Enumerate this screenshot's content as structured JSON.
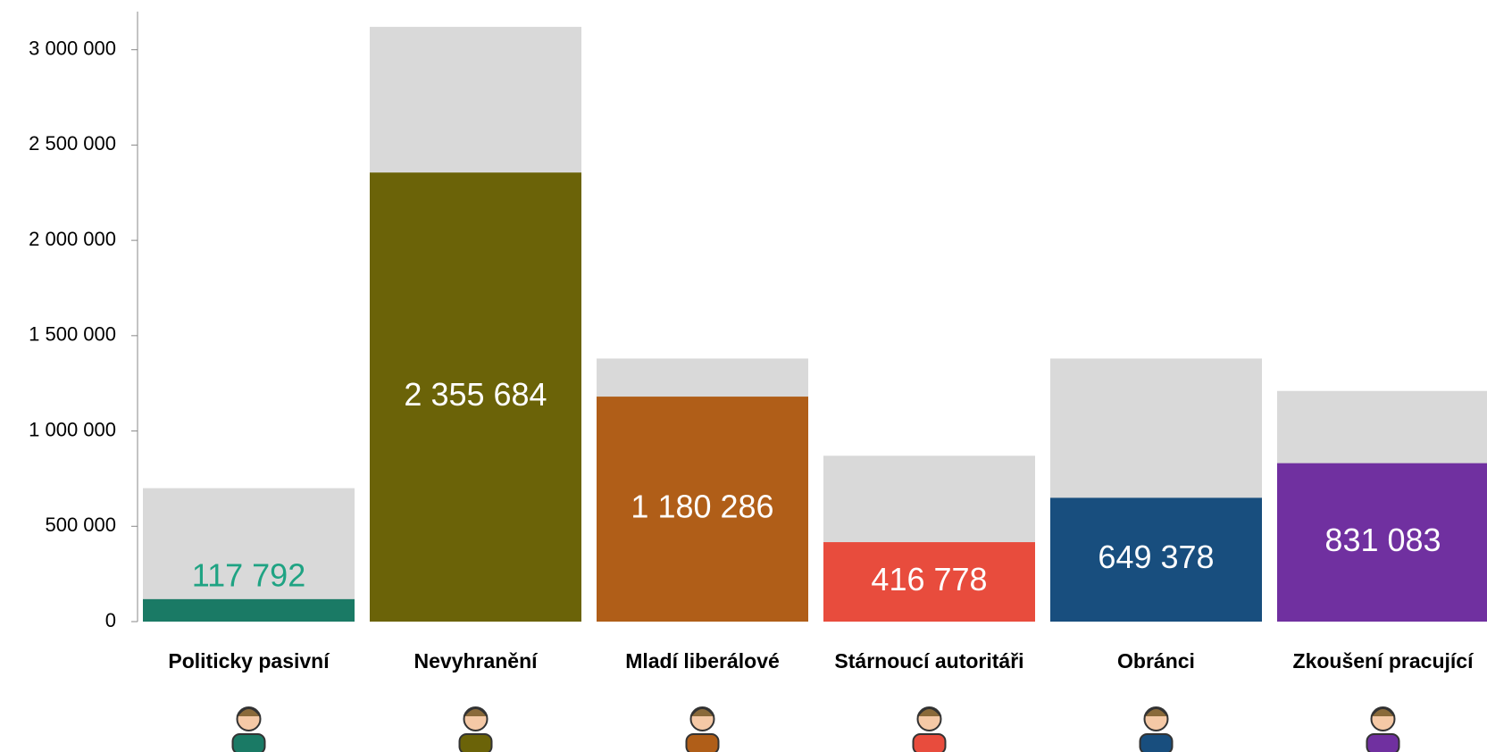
{
  "chart_data": {
    "type": "bar",
    "categories": [
      "Politicky pasivní",
      "Nevyhranění",
      "Mladí liberálové",
      "Stárnoucí autoritáři",
      "Obránci",
      "Zkoušení pracující"
    ],
    "values": [
      117792,
      2355684,
      1180286,
      416778,
      649378,
      831083
    ],
    "value_labels": [
      "117 792",
      "2 355 684",
      "1 180 286",
      "416 778",
      "649 378",
      "831 083"
    ],
    "totals": [
      700000,
      3120000,
      1380000,
      870000,
      1380000,
      1210000
    ],
    "colors": [
      "#1a7a65",
      "#6b6308",
      "#b05e18",
      "#e84c3d",
      "#184e7e",
      "#7030a0"
    ],
    "total_color": "#d9d9d9",
    "outside_label_color": "#1fa383",
    "ylim": [
      0,
      3200000
    ],
    "yticks": [
      0,
      {
        "value": 500000,
        "label": "500 000"
      },
      {
        "value": 1000000,
        "label": "1 000 000"
      },
      {
        "value": 1500000,
        "label": "1 500 000"
      },
      {
        "value": 2000000,
        "label": "2 000 000"
      },
      {
        "value": 2500000,
        "label": "2 500 000"
      },
      {
        "value": 3000000,
        "label": "3 000 000"
      }
    ]
  }
}
